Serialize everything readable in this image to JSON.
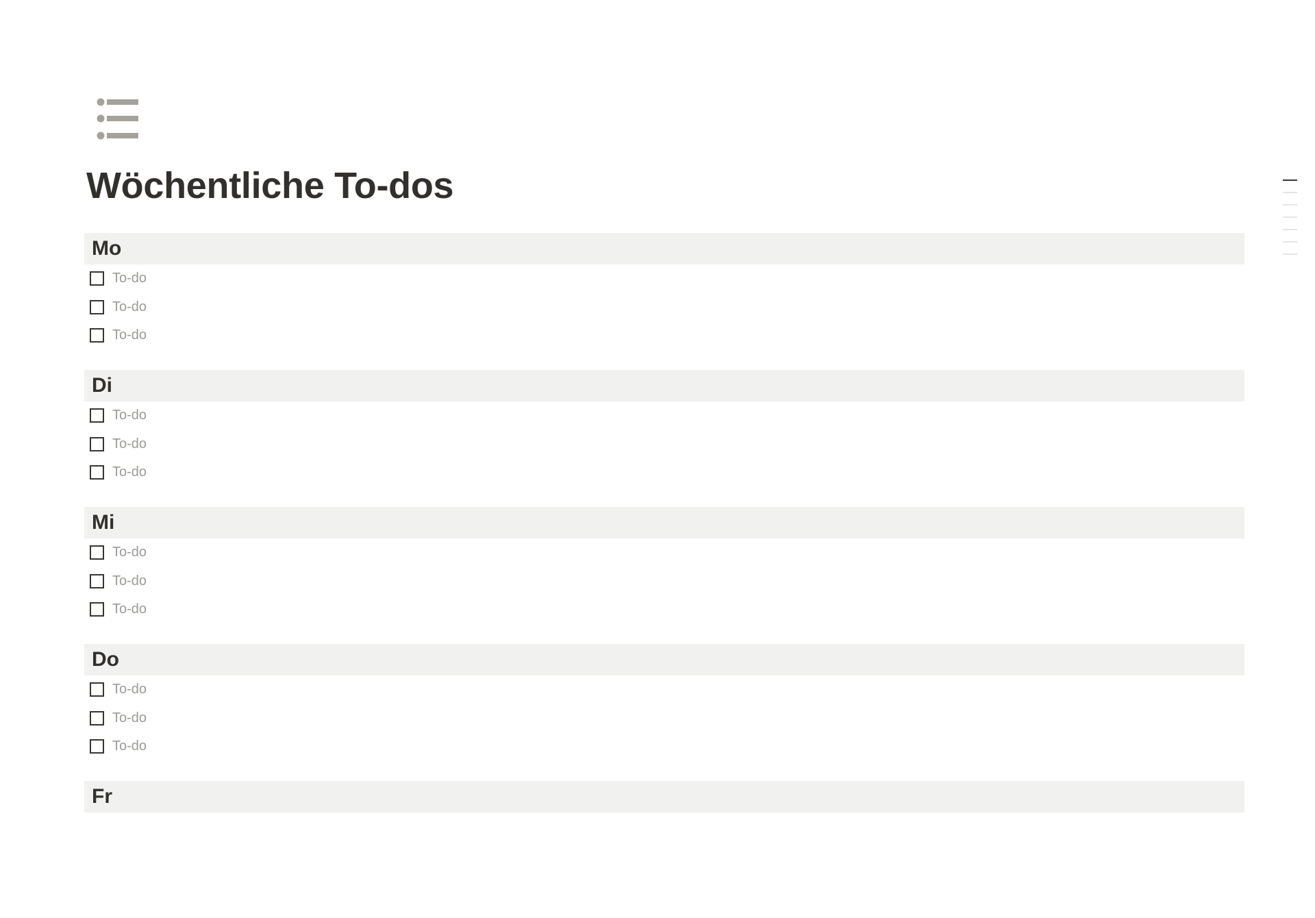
{
  "page": {
    "icon": "bulleted-list-icon",
    "title": "Wöchentliche To-dos",
    "icon_color": "#a5a29a",
    "header_bg": "#f1f1ef"
  },
  "sections": [
    {
      "day": "Mo",
      "todos": [
        {
          "text": "To-do",
          "checked": false
        },
        {
          "text": "To-do",
          "checked": false
        },
        {
          "text": "To-do",
          "checked": false
        }
      ]
    },
    {
      "day": "Di",
      "todos": [
        {
          "text": "To-do",
          "checked": false
        },
        {
          "text": "To-do",
          "checked": false
        },
        {
          "text": "To-do",
          "checked": false
        }
      ]
    },
    {
      "day": "Mi",
      "todos": [
        {
          "text": "To-do",
          "checked": false
        },
        {
          "text": "To-do",
          "checked": false
        },
        {
          "text": "To-do",
          "checked": false
        }
      ]
    },
    {
      "day": "Do",
      "todos": [
        {
          "text": "To-do",
          "checked": false
        },
        {
          "text": "To-do",
          "checked": false
        },
        {
          "text": "To-do",
          "checked": false
        }
      ]
    },
    {
      "day": "Fr",
      "todos": []
    }
  ],
  "toc": {
    "items": 7,
    "active_index": 0
  }
}
